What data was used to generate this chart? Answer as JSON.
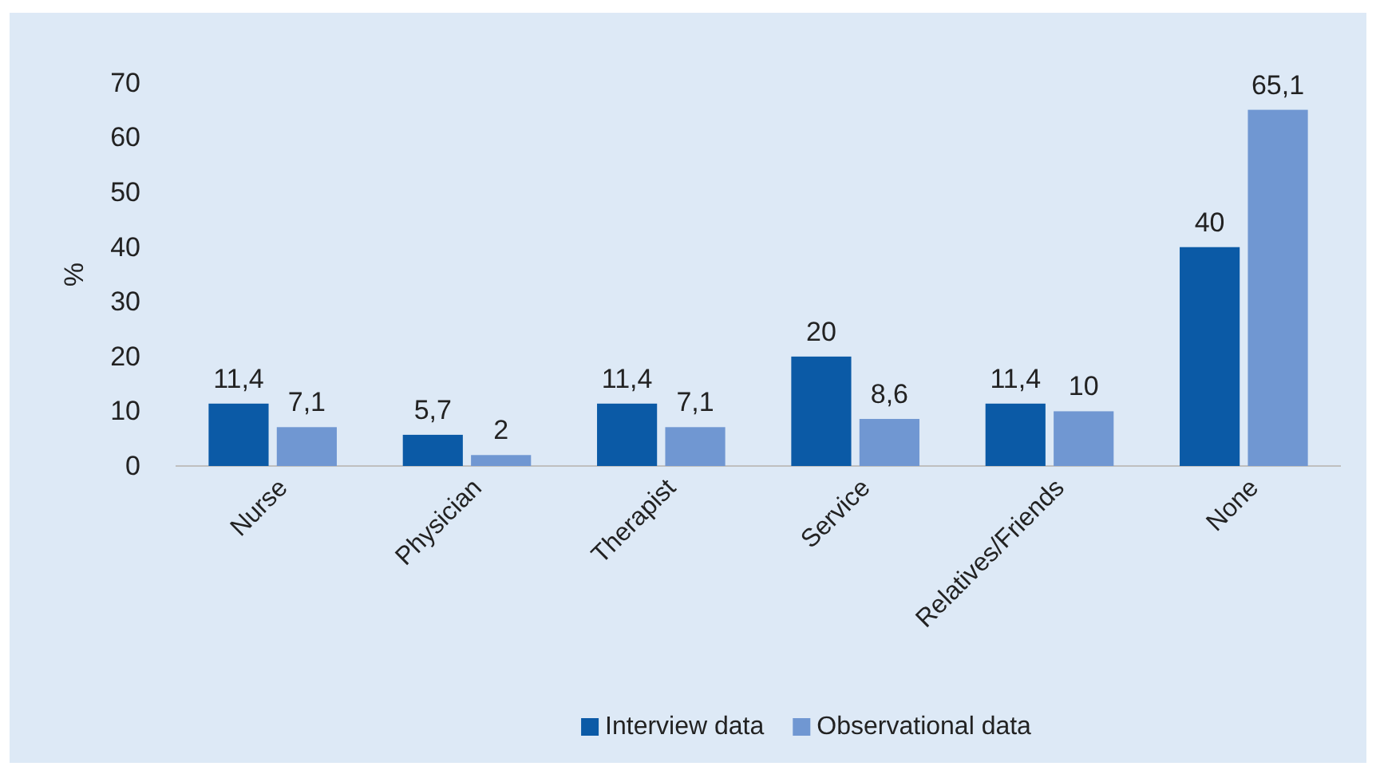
{
  "chart_data": {
    "type": "bar",
    "ylabel": "%",
    "categories": [
      "Nurse",
      "Physician",
      "Therapist",
      "Service",
      "Relatives/Friends",
      "None"
    ],
    "series": [
      {
        "name": "Interview data",
        "color": "#0b5aa6",
        "values": [
          11.4,
          5.7,
          11.4,
          20,
          11.4,
          40
        ],
        "value_labels": [
          "11,4",
          "5,7",
          "11,4",
          "20",
          "11,4",
          "40"
        ]
      },
      {
        "name": "Observational data",
        "color": "#7097d2",
        "values": [
          7.1,
          2,
          7.1,
          8.6,
          10,
          65.1
        ],
        "value_labels": [
          "7,1",
          "2",
          "7,1",
          "8,6",
          "10",
          "65,1"
        ]
      }
    ],
    "ylim": [
      0,
      70
    ],
    "yticks": [
      0,
      10,
      20,
      30,
      40,
      50,
      60,
      70
    ],
    "grid": false,
    "legend": "bottom"
  }
}
